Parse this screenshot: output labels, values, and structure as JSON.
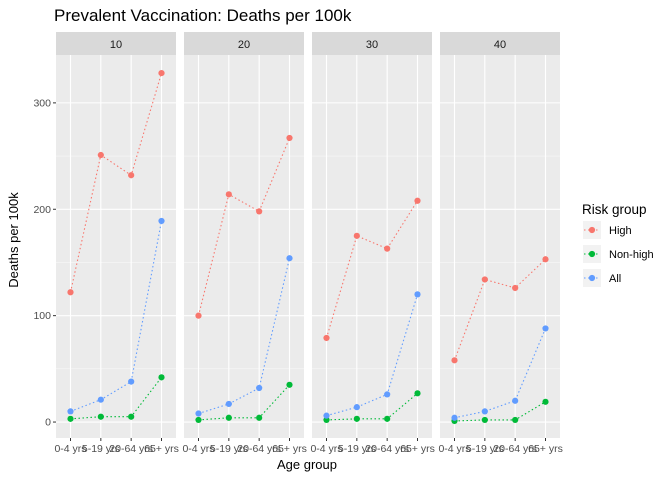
{
  "chart_data": {
    "type": "line",
    "title": "Prevalent Vaccination: Deaths per 100k",
    "xlabel": "Age group",
    "ylabel": "Deaths per 100k",
    "categories": [
      "0-4 yrs",
      "5-19 yrs",
      "20-64 yrs",
      "65+ yrs"
    ],
    "ylim": [
      -15,
      345
    ],
    "yticks": [
      0,
      100,
      200,
      300
    ],
    "grid": true,
    "line_style": "dotted",
    "legend": {
      "title": "Risk group",
      "position": "right"
    },
    "panels": [
      {
        "label": "10",
        "series": [
          {
            "name": "High",
            "color": "#F8766D",
            "values": [
              122,
              251,
              232,
              328
            ]
          },
          {
            "name": "Non-high",
            "color": "#00BA38",
            "values": [
              3,
              5,
              5,
              42
            ]
          },
          {
            "name": "All",
            "color": "#619CFF",
            "values": [
              10,
              21,
              38,
              189
            ]
          }
        ]
      },
      {
        "label": "20",
        "series": [
          {
            "name": "High",
            "color": "#F8766D",
            "values": [
              100,
              214,
              198,
              267
            ]
          },
          {
            "name": "Non-high",
            "color": "#00BA38",
            "values": [
              2,
              4,
              4,
              35
            ]
          },
          {
            "name": "All",
            "color": "#619CFF",
            "values": [
              8,
              17,
              32,
              154
            ]
          }
        ]
      },
      {
        "label": "30",
        "series": [
          {
            "name": "High",
            "color": "#F8766D",
            "values": [
              79,
              175,
              163,
              208
            ]
          },
          {
            "name": "Non-high",
            "color": "#00BA38",
            "values": [
              2,
              3,
              3,
              27
            ]
          },
          {
            "name": "All",
            "color": "#619CFF",
            "values": [
              6,
              14,
              26,
              120
            ]
          }
        ]
      },
      {
        "label": "40",
        "series": [
          {
            "name": "High",
            "color": "#F8766D",
            "values": [
              58,
              134,
              126,
              153
            ]
          },
          {
            "name": "Non-high",
            "color": "#00BA38",
            "values": [
              1,
              2,
              2,
              19
            ]
          },
          {
            "name": "All",
            "color": "#619CFF",
            "values": [
              4,
              10,
              20,
              88
            ]
          }
        ]
      }
    ]
  }
}
